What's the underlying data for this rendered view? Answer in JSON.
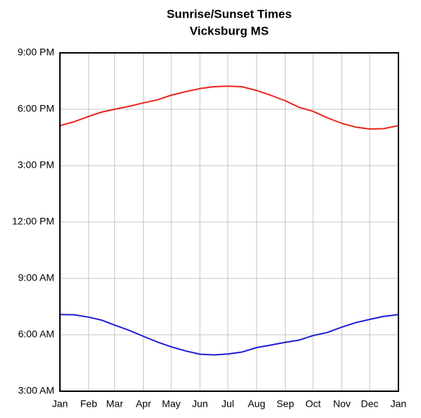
{
  "chart_data": {
    "type": "line",
    "title": "Sunrise/Sunset Times",
    "subtitle": "Vicksburg MS",
    "x": [
      0,
      15,
      31,
      45,
      59,
      74,
      90,
      105,
      120,
      135,
      151,
      166,
      181,
      196,
      212,
      227,
      243,
      258,
      273,
      288,
      304,
      319,
      334,
      349,
      365
    ],
    "series": [
      {
        "color": "#e8251a",
        "values": [
          17.13,
          17.33,
          17.62,
          17.85,
          18.0,
          18.15,
          18.34,
          18.5,
          18.75,
          18.93,
          19.1,
          19.2,
          19.23,
          19.2,
          19.0,
          18.75,
          18.45,
          18.1,
          17.89,
          17.55,
          17.25,
          17.05,
          16.95,
          16.97,
          17.13
        ]
      },
      {
        "color": "#1c1cd6",
        "values": [
          7.08,
          7.07,
          6.94,
          6.78,
          6.52,
          6.25,
          5.92,
          5.62,
          5.36,
          5.15,
          4.97,
          4.93,
          4.98,
          5.08,
          5.32,
          5.45,
          5.6,
          5.72,
          5.96,
          6.12,
          6.41,
          6.65,
          6.82,
          6.98,
          7.08
        ]
      }
    ],
    "xlim": [
      0,
      365
    ],
    "xticks": [
      {
        "value": 0,
        "label": "Jan"
      },
      {
        "value": 31,
        "label": "Feb"
      },
      {
        "value": 59,
        "label": "Mar"
      },
      {
        "value": 90,
        "label": "Apr"
      },
      {
        "value": 120,
        "label": "May"
      },
      {
        "value": 151,
        "label": "Jun"
      },
      {
        "value": 181,
        "label": "Jul"
      },
      {
        "value": 212,
        "label": "Aug"
      },
      {
        "value": 243,
        "label": "Sep"
      },
      {
        "value": 273,
        "label": "Oct"
      },
      {
        "value": 304,
        "label": "Nov"
      },
      {
        "value": 334,
        "label": "Dec"
      },
      {
        "value": 365,
        "label": "Jan"
      }
    ],
    "ylim": [
      3,
      21
    ],
    "yticks": [
      {
        "value": 3,
        "label": "3:00 AM"
      },
      {
        "value": 6,
        "label": "6:00 AM"
      },
      {
        "value": 9,
        "label": "9:00 AM"
      },
      {
        "value": 12,
        "label": "12:00 PM"
      },
      {
        "value": 15,
        "label": "3:00 PM"
      },
      {
        "value": 18,
        "label": "6:00 PM"
      },
      {
        "value": 21,
        "label": "9:00 PM"
      }
    ],
    "grid": true
  }
}
